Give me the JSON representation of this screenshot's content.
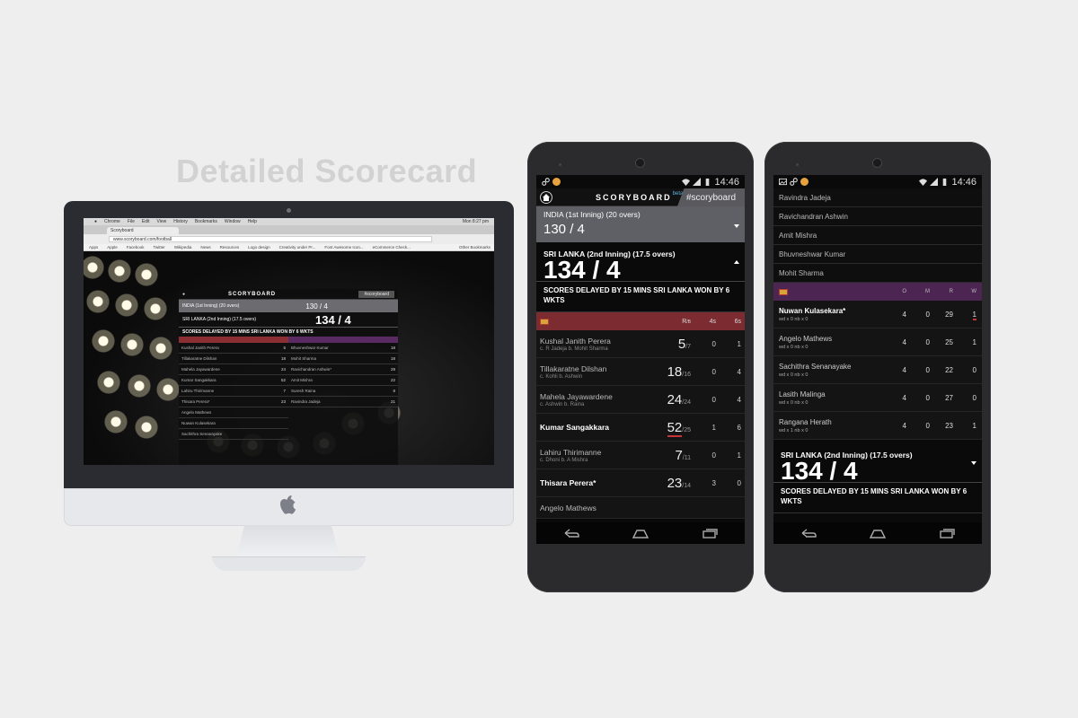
{
  "headline": "Detailed Scorecard",
  "desktop": {
    "menubar": [
      "Chrome",
      "File",
      "Edit",
      "View",
      "History",
      "Bookmarks",
      "Window",
      "Help"
    ],
    "clock": "Mon 8:27 pm",
    "tab_title": "Scoryboard",
    "url": "www.scoryboard.com/football",
    "bookmarks": [
      "Apps",
      "Apple",
      "Facebook",
      "Twitter",
      "Wikipedia",
      "News",
      "Resources",
      "Logo design",
      "Creativity under Pr...",
      "Font Awesome Icon...",
      "eCommerce Check...",
      "Other Bookmarks"
    ],
    "logo": "SCORYBOARD",
    "hashtag": "#scoryboard",
    "team1_label": "INDIA  (1st Inning)  (20 overs)",
    "team1_score": "130 / 4",
    "team2_label": "SRI LANKA  (2nd Inning)  (17.5 overs)",
    "team2_score": "134 / 4",
    "message": "SCORES DELAYED BY 15 MINS SRI LANKA WON BY 6 WKTS",
    "batting": [
      {
        "name": "Kushal Janith Perera",
        "r": "5"
      },
      {
        "name": "Tillakaratne Dilshan",
        "r": "18"
      },
      {
        "name": "Mahela Jayawardene",
        "r": "24"
      },
      {
        "name": "Kumar Sangakkara",
        "r": "52"
      },
      {
        "name": "Lahiru Thirimanne",
        "r": "7"
      },
      {
        "name": "Thisara Perera*",
        "r": "23"
      },
      {
        "name": "Angelo Mathews",
        "r": ""
      },
      {
        "name": "Nuwan Kulasekara",
        "r": ""
      },
      {
        "name": "Sachithra Senanayake",
        "r": ""
      }
    ],
    "bowling": [
      {
        "name": "Bhuvneshwar Kumar",
        "r": "18"
      },
      {
        "name": "Mohit Sharma",
        "r": "18"
      },
      {
        "name": "Ravichandran Ashwin*",
        "r": "29"
      },
      {
        "name": "Amit Mishra",
        "r": "22"
      },
      {
        "name": "Suresh Raina",
        "r": "8"
      },
      {
        "name": "Ravindra Jadeja",
        "r": "21"
      }
    ]
  },
  "phone1": {
    "time": "14:46",
    "logo": "SCORYBOARD",
    "beta": "beta",
    "hashtag": "#scoryboard",
    "team1_label": "INDIA  (1st Inning)  (20 overs)",
    "team1_score": "130 / 4",
    "team2_label": "SRI LANKA  (2nd Inning)  (17.5 overs)",
    "team2_score": "134 / 4",
    "message": "SCORES DELAYED BY 15 MINS SRI LANKA WON BY 6 WKTS",
    "headers": {
      "r": "R",
      "b": "/B",
      "fours": "4s",
      "sixes": "6s"
    },
    "batting": [
      {
        "name": "Kushal Janith Perera",
        "dismissal": "c. R Jadeja b. Mohit Sharma",
        "runs": "5",
        "balls": "/7",
        "fours": "0",
        "sixes": "1"
      },
      {
        "name": "Tillakaratne Dilshan",
        "dismissal": "c. Kohli b. Ashwin",
        "runs": "18",
        "balls": "/16",
        "fours": "0",
        "sixes": "4"
      },
      {
        "name": "Mahela Jayawardene",
        "dismissal": "c. Ashwin b. Raina",
        "runs": "24",
        "balls": "/24",
        "fours": "0",
        "sixes": "4"
      },
      {
        "name": "Kumar Sangakkara",
        "dismissal": "",
        "runs": "52",
        "balls": "/25",
        "fours": "1",
        "sixes": "6"
      },
      {
        "name": "Lahiru Thirimanne",
        "dismissal": "c. Dhoni b. A Mishra",
        "runs": "7",
        "balls": "/11",
        "fours": "0",
        "sixes": "1"
      },
      {
        "name": "Thisara Perera*",
        "dismissal": "",
        "runs": "23",
        "balls": "/14",
        "fours": "3",
        "sixes": "0"
      },
      {
        "name": "Angelo Mathews",
        "dismissal": "",
        "runs": "",
        "balls": "",
        "fours": "",
        "sixes": ""
      }
    ]
  },
  "phone2": {
    "time": "14:46",
    "players": [
      "Ravindra Jadeja",
      "Ravichandran Ashwin",
      "Amit Mishra",
      "Bhuvneshwar Kumar",
      "Mohit Sharma"
    ],
    "headers": {
      "o": "O",
      "m": "M",
      "r": "R",
      "w": "W"
    },
    "bowling": [
      {
        "name": "Nuwan Kulasekara*",
        "extras": "wd x 0 nb x 0",
        "o": "4",
        "m": "0",
        "r": "29",
        "w": "1"
      },
      {
        "name": "Angelo Mathews",
        "extras": "wd x 0 nb x 0",
        "o": "4",
        "m": "0",
        "r": "25",
        "w": "1"
      },
      {
        "name": "Sachithra Senanayake",
        "extras": "wd x 0 nb x 0",
        "o": "4",
        "m": "0",
        "r": "22",
        "w": "0"
      },
      {
        "name": "Lasith Malinga",
        "extras": "wd x 0 nb x 0",
        "o": "4",
        "m": "0",
        "r": "27",
        "w": "0"
      },
      {
        "name": "Rangana Herath",
        "extras": "wd x 1 nb x 0",
        "o": "4",
        "m": "0",
        "r": "23",
        "w": "1"
      }
    ],
    "team2_label": "SRI LANKA  (2nd Inning)  (17.5 overs)",
    "team2_score": "134 / 4",
    "message": "SCORES DELAYED BY 15 MINS SRI LANKA WON BY 6 WKTS"
  },
  "colors": {
    "batting_header": "#7c2b30",
    "bowling_header": "#4c2552",
    "team_bar": "#5f6066",
    "accent_beta": "#58b5e5"
  },
  "icons": [
    "apple-logo-icon",
    "home-icon",
    "wifi-icon",
    "signal-icon",
    "battery-icon",
    "back-icon",
    "nav-home-icon",
    "recents-icon",
    "link-icon",
    "image-icon",
    "chevron-down-icon",
    "chevron-up-icon"
  ]
}
